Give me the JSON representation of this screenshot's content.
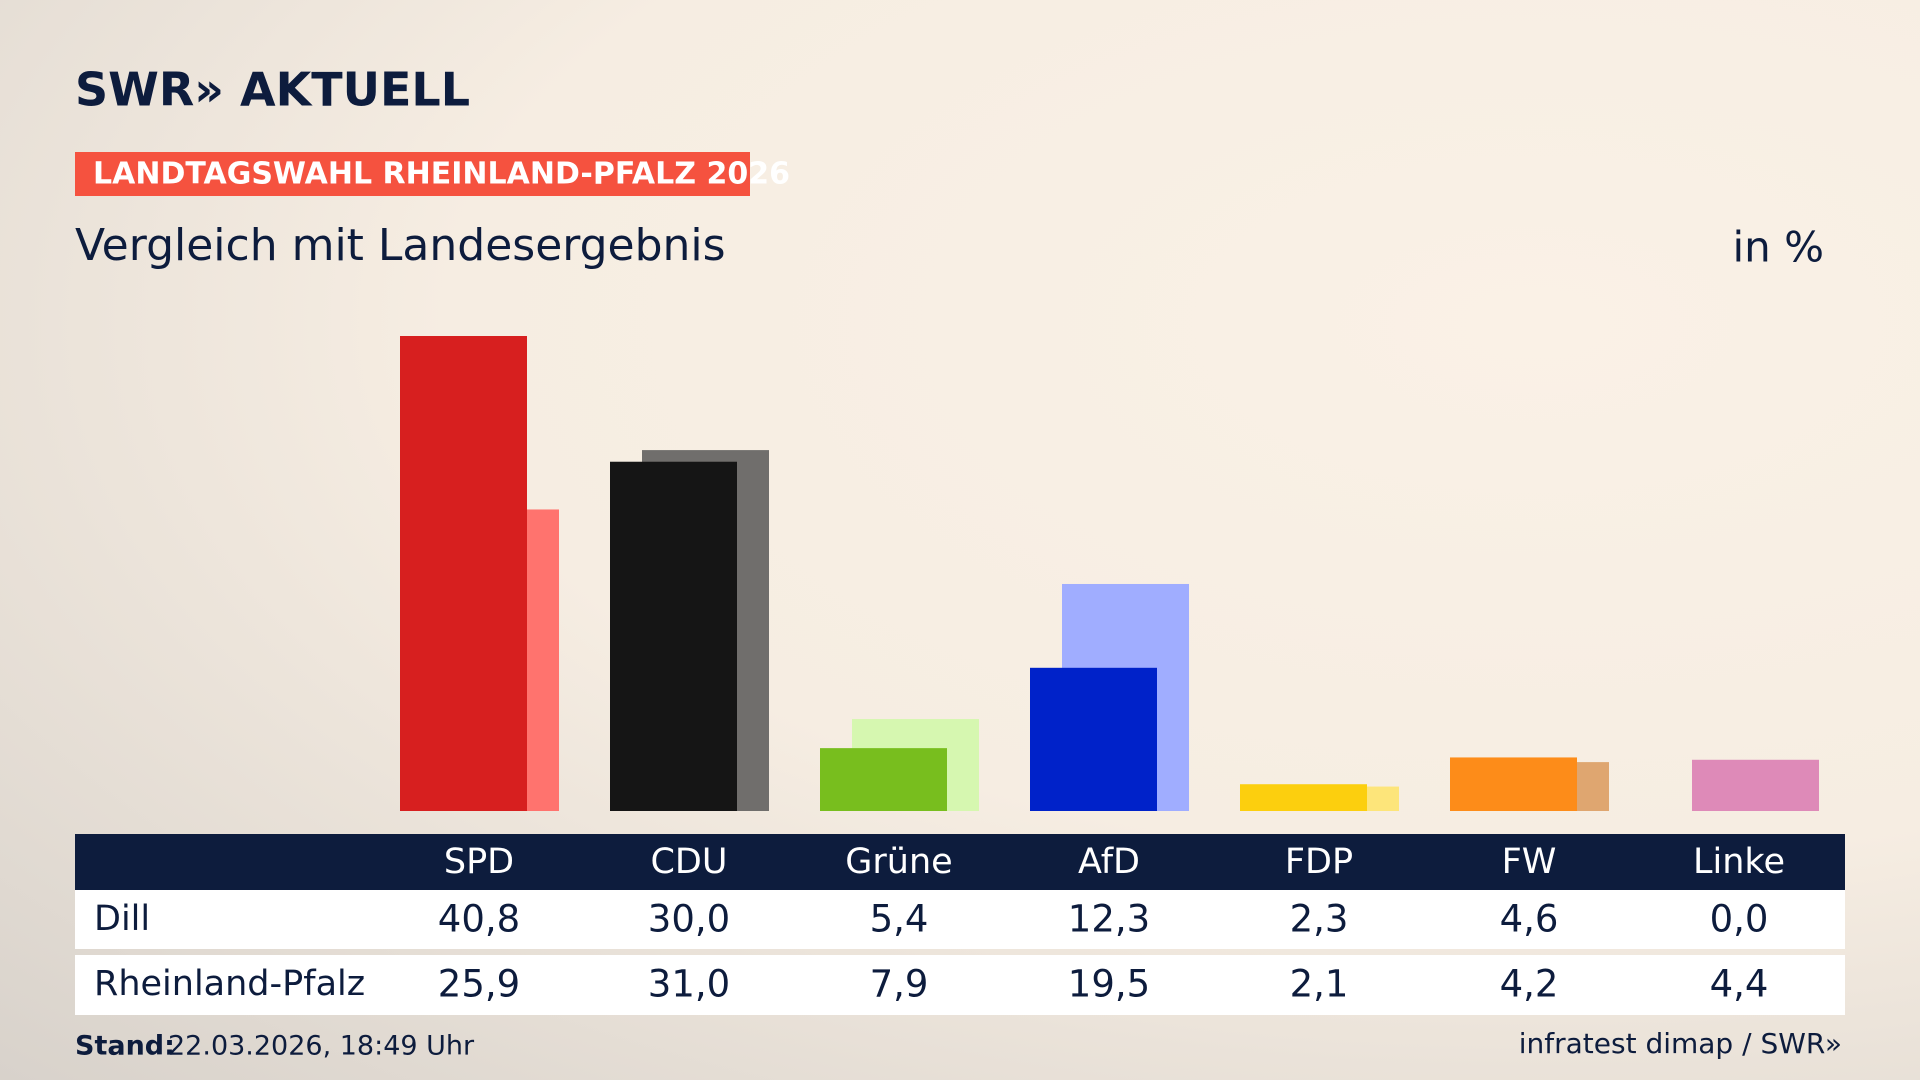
{
  "header": {
    "logo": "SWR» AKTUELL",
    "badge": "LANDTAGSWAHL RHEINLAND-PFALZ 2026"
  },
  "chart_data": {
    "type": "bar",
    "subtitle": "Vergleich mit Landesergebnis",
    "unit": "in %",
    "categories": [
      "SPD",
      "CDU",
      "Grüne",
      "AfD",
      "FDP",
      "FW",
      "Linke"
    ],
    "series": [
      {
        "name": "Dill",
        "colors": [
          "#d71f1f",
          "#151515",
          "#78be1e",
          "#0022c9",
          "#fccf0e",
          "#fd8c19",
          "#c04a8a"
        ],
        "values": [
          40.8,
          30.0,
          5.4,
          12.3,
          2.3,
          4.6,
          0.0
        ],
        "value_labels": [
          "40,8",
          "30,0",
          "5,4",
          "12,3",
          "2,3",
          "4,6",
          "0,0"
        ]
      },
      {
        "name": "Rheinland-Pfalz",
        "colors": [
          "#ff736e",
          "#706e6c",
          "#d6f7b0",
          "#a0adff",
          "#fde57a",
          "#dfa670",
          "#de8ab8"
        ],
        "values": [
          25.9,
          31.0,
          7.9,
          19.5,
          2.1,
          4.2,
          4.4
        ],
        "value_labels": [
          "25,9",
          "31,0",
          "7,9",
          "19,5",
          "2,1",
          "4,2",
          "4,4"
        ]
      }
    ]
  },
  "footer": {
    "stand_label": "Stand:",
    "stand": "22.03.2026, 18:49 Uhr",
    "source": "infratest dimap / SWR»"
  }
}
